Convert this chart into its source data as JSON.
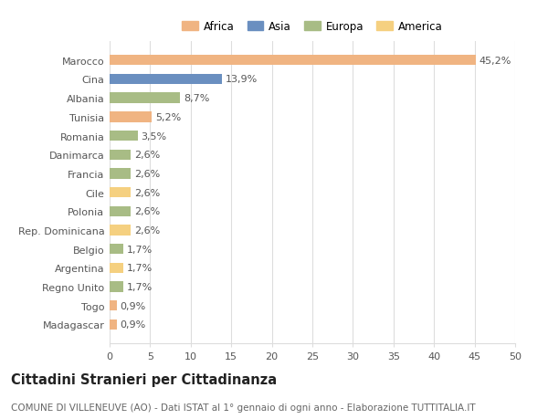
{
  "categories": [
    "Marocco",
    "Cina",
    "Albania",
    "Tunisia",
    "Romania",
    "Danimarca",
    "Francia",
    "Cile",
    "Polonia",
    "Rep. Dominicana",
    "Belgio",
    "Argentina",
    "Regno Unito",
    "Togo",
    "Madagascar"
  ],
  "values": [
    45.2,
    13.9,
    8.7,
    5.2,
    3.5,
    2.6,
    2.6,
    2.6,
    2.6,
    2.6,
    1.7,
    1.7,
    1.7,
    0.9,
    0.9
  ],
  "labels": [
    "45,2%",
    "13,9%",
    "8,7%",
    "5,2%",
    "3,5%",
    "2,6%",
    "2,6%",
    "2,6%",
    "2,6%",
    "2,6%",
    "1,7%",
    "1,7%",
    "1,7%",
    "0,9%",
    "0,9%"
  ],
  "colors": [
    "#F0B482",
    "#6A8FC0",
    "#A8BC85",
    "#F0B482",
    "#A8BC85",
    "#A8BC85",
    "#A8BC85",
    "#F5D080",
    "#A8BC85",
    "#F5D080",
    "#A8BC85",
    "#F5D080",
    "#A8BC85",
    "#F0B482",
    "#F0B482"
  ],
  "legend_labels": [
    "Africa",
    "Asia",
    "Europa",
    "America"
  ],
  "legend_colors": [
    "#F0B482",
    "#6A8FC0",
    "#A8BC85",
    "#F5D080"
  ],
  "xlim": [
    0,
    50
  ],
  "xticks": [
    0,
    5,
    10,
    15,
    20,
    25,
    30,
    35,
    40,
    45,
    50
  ],
  "title": "Cittadini Stranieri per Cittadinanza",
  "subtitle": "COMUNE DI VILLENEUVE (AO) - Dati ISTAT al 1° gennaio di ogni anno - Elaborazione TUTTITALIA.IT",
  "bg_color": "#ffffff",
  "grid_color": "#dddddd",
  "bar_height": 0.55,
  "label_fontsize": 8,
  "tick_fontsize": 8,
  "title_fontsize": 10.5,
  "subtitle_fontsize": 7.5
}
